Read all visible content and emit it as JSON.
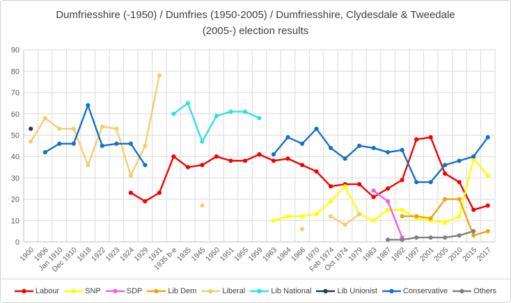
{
  "title": "Dumfriesshire (-1950) / Dumfries (1950-2005) / Dumfriesshire, Clydesdale & Tweedale (2005-) election results",
  "chart_data": {
    "type": "line",
    "title": "Dumfriesshire (-1950) / Dumfries (1950-2005) / Dumfriesshire, Clydesdale & Tweedale (2005-) election results",
    "xlabel": "",
    "ylabel": "",
    "ylim": [
      0,
      90
    ],
    "ytick_step": 10,
    "grid": true,
    "legend_position": "bottom",
    "marker": "circle",
    "categories": [
      "1900",
      "1906",
      "Jan 1910",
      "Dec 1910",
      "1918",
      "1922",
      "1923",
      "1924",
      "1929",
      "1931",
      "1935 b-e",
      "1935",
      "1945",
      "1950",
      "1951",
      "1955",
      "1959",
      "1963",
      "1964",
      "1966",
      "1970",
      "Feb 1974",
      "Oct 1974",
      "1979",
      "1983",
      "1987",
      "1992",
      "1997",
      "2001",
      "2005",
      "2010",
      "2015",
      "2017"
    ],
    "series": [
      {
        "name": "Labour",
        "color": "#f40000",
        "values": [
          null,
          null,
          null,
          null,
          null,
          null,
          null,
          23,
          19,
          23,
          40,
          35,
          36,
          40,
          38,
          38,
          41,
          38,
          39,
          36,
          33,
          26,
          27,
          27,
          21,
          25,
          29,
          48,
          49,
          32,
          28,
          15,
          17
        ]
      },
      {
        "name": "SNP",
        "color": "#ffff00",
        "values": [
          null,
          null,
          null,
          null,
          null,
          null,
          null,
          null,
          null,
          null,
          null,
          null,
          null,
          null,
          null,
          null,
          null,
          10,
          12,
          12,
          13,
          19,
          26,
          13,
          10,
          15,
          15,
          11,
          10,
          9,
          12,
          39,
          31
        ]
      },
      {
        "name": "SDP",
        "color": "#ef5fe2",
        "values": [
          null,
          null,
          null,
          null,
          null,
          null,
          null,
          null,
          null,
          null,
          null,
          null,
          null,
          null,
          null,
          null,
          null,
          null,
          null,
          null,
          null,
          null,
          null,
          null,
          24,
          19,
          2,
          null,
          null,
          null,
          null,
          null,
          null
        ]
      },
      {
        "name": "Lib Dem",
        "color": "#eda414",
        "values": [
          null,
          null,
          null,
          null,
          null,
          null,
          null,
          null,
          null,
          null,
          null,
          null,
          null,
          null,
          null,
          null,
          null,
          null,
          null,
          null,
          null,
          null,
          null,
          null,
          null,
          null,
          12,
          12,
          11,
          20,
          20,
          3,
          5
        ]
      },
      {
        "name": "Liberal",
        "color": "#f4cd6e",
        "values": [
          47,
          58,
          53,
          53,
          36,
          54,
          53,
          31,
          45,
          78,
          null,
          null,
          17,
          null,
          null,
          null,
          null,
          null,
          null,
          6,
          null,
          12,
          8,
          13,
          null,
          null,
          null,
          null,
          null,
          null,
          null,
          null,
          null
        ]
      },
      {
        "name": "Lib National",
        "color": "#2ee1e8",
        "values": [
          null,
          null,
          null,
          null,
          null,
          null,
          null,
          null,
          null,
          null,
          60,
          65,
          47,
          59,
          61,
          61,
          58,
          null,
          null,
          null,
          null,
          null,
          null,
          null,
          null,
          null,
          null,
          null,
          null,
          null,
          null,
          null,
          null
        ]
      },
      {
        "name": "Lib Unionist",
        "color": "#1b3a5c",
        "values": [
          53,
          null,
          null,
          null,
          null,
          null,
          null,
          null,
          null,
          null,
          null,
          null,
          null,
          null,
          null,
          null,
          null,
          null,
          null,
          null,
          null,
          null,
          null,
          null,
          null,
          null,
          null,
          null,
          null,
          null,
          null,
          null,
          null
        ]
      },
      {
        "name": "Conservative",
        "color": "#1371c6",
        "values": [
          null,
          42,
          46,
          46,
          64,
          45,
          46,
          46,
          36,
          null,
          null,
          null,
          null,
          null,
          null,
          null,
          null,
          41,
          49,
          46,
          53,
          44,
          39,
          45,
          44,
          42,
          43,
          28,
          28,
          36,
          38,
          40,
          49
        ]
      },
      {
        "name": "Others",
        "color": "#7f7f7f",
        "values": [
          null,
          null,
          null,
          null,
          null,
          null,
          null,
          null,
          null,
          null,
          null,
          null,
          null,
          null,
          null,
          null,
          null,
          null,
          null,
          null,
          null,
          null,
          null,
          null,
          null,
          1,
          1,
          2,
          2,
          2,
          3,
          5,
          null
        ]
      }
    ]
  }
}
